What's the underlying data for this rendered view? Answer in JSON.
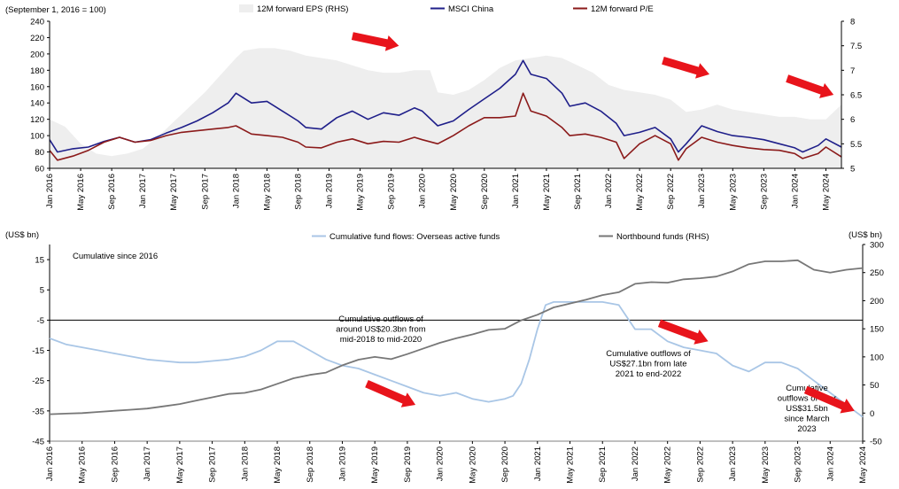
{
  "chart_data": [
    {
      "type": "line",
      "unit_label": "(September 1, 2016 = 100)",
      "xlim": [
        "2016-01",
        "2024-07"
      ],
      "ylim": [
        60,
        240
      ],
      "y_ticks": [
        60,
        80,
        100,
        120,
        140,
        160,
        180,
        200,
        220,
        240
      ],
      "y2lim": [
        5,
        8
      ],
      "y2_ticks": [
        "5",
        "5.5",
        "6",
        "6.5",
        "7",
        "7.5",
        "8"
      ],
      "x_ticks": [
        "Jan 2016",
        "May 2016",
        "Sep 2016",
        "Jan 2017",
        "May 2017",
        "Sep 2017",
        "Jan 2018",
        "May 2018",
        "Sep 2018",
        "Jan 2019",
        "May 2019",
        "Sep 2019",
        "Jan 2020",
        "May 2020",
        "Sep 2020",
        "Jan 2021",
        "May 2021",
        "Sep 2021",
        "Jan 2022",
        "May 2022",
        "Sep 2022",
        "Jan 2023",
        "May 2023",
        "Sep 2023",
        "Jan 2024",
        "May 2024"
      ],
      "legend": [
        "12M forward EPS (RHS)",
        "MSCI China",
        "12M forward P/E"
      ],
      "colors": {
        "eps": "#eeeeee",
        "msci": "#1f1f8a",
        "pe": "#8b1a1a",
        "arrow": "#e8141b"
      },
      "series": [
        {
          "name": "12M forward EPS (RHS)",
          "axis": "right",
          "style": "area",
          "x": [
            "2016-01",
            "2016-03",
            "2016-05",
            "2016-07",
            "2016-09",
            "2016-11",
            "2017-01",
            "2017-03",
            "2017-05",
            "2017-07",
            "2017-09",
            "2017-11",
            "2018-01",
            "2018-02",
            "2018-04",
            "2018-06",
            "2018-08",
            "2018-10",
            "2018-12",
            "2019-02",
            "2019-04",
            "2019-06",
            "2019-08",
            "2019-10",
            "2019-12",
            "2020-02",
            "2020-03",
            "2020-05",
            "2020-07",
            "2020-09",
            "2020-11",
            "2021-01",
            "2021-03",
            "2021-05",
            "2021-07",
            "2021-09",
            "2021-11",
            "2022-01",
            "2022-03",
            "2022-05",
            "2022-07",
            "2022-09",
            "2022-11",
            "2023-01",
            "2023-03",
            "2023-05",
            "2023-07",
            "2023-09",
            "2023-11",
            "2024-01",
            "2024-03",
            "2024-05",
            "2024-07"
          ],
          "values": [
            6.0,
            5.85,
            5.5,
            5.3,
            5.25,
            5.3,
            5.4,
            5.65,
            5.95,
            6.25,
            6.55,
            6.9,
            7.25,
            7.4,
            7.45,
            7.45,
            7.4,
            7.3,
            7.25,
            7.2,
            7.1,
            7.0,
            6.95,
            6.95,
            7.0,
            7.0,
            6.55,
            6.5,
            6.6,
            6.8,
            7.05,
            7.2,
            7.25,
            7.3,
            7.25,
            7.1,
            6.95,
            6.7,
            6.6,
            6.55,
            6.5,
            6.4,
            6.15,
            6.2,
            6.3,
            6.2,
            6.15,
            6.1,
            6.05,
            6.05,
            6.0,
            6.0,
            6.3
          ]
        },
        {
          "name": "MSCI China",
          "axis": "left",
          "x": [
            "2016-01",
            "2016-02",
            "2016-04",
            "2016-06",
            "2016-08",
            "2016-10",
            "2016-12",
            "2017-02",
            "2017-04",
            "2017-06",
            "2017-08",
            "2017-10",
            "2017-12",
            "2018-01",
            "2018-03",
            "2018-05",
            "2018-07",
            "2018-09",
            "2018-10",
            "2018-12",
            "2019-02",
            "2019-04",
            "2019-06",
            "2019-08",
            "2019-10",
            "2019-12",
            "2020-01",
            "2020-03",
            "2020-05",
            "2020-07",
            "2020-09",
            "2020-11",
            "2021-01",
            "2021-02",
            "2021-03",
            "2021-05",
            "2021-07",
            "2021-08",
            "2021-10",
            "2021-12",
            "2022-02",
            "2022-03",
            "2022-05",
            "2022-07",
            "2022-09",
            "2022-10",
            "2022-11",
            "2023-01",
            "2023-03",
            "2023-05",
            "2023-07",
            "2023-09",
            "2023-11",
            "2024-01",
            "2024-02",
            "2024-04",
            "2024-05",
            "2024-07"
          ],
          "values": [
            95,
            80,
            84,
            86,
            93,
            98,
            92,
            95,
            103,
            110,
            118,
            128,
            140,
            152,
            140,
            142,
            130,
            118,
            110,
            108,
            122,
            130,
            120,
            128,
            125,
            134,
            130,
            112,
            118,
            132,
            145,
            158,
            175,
            192,
            175,
            170,
            152,
            136,
            140,
            130,
            115,
            100,
            104,
            110,
            96,
            80,
            90,
            112,
            105,
            100,
            98,
            95,
            90,
            85,
            80,
            88,
            96,
            86
          ]
        },
        {
          "name": "12M forward P/E",
          "axis": "left",
          "x": [
            "2016-01",
            "2016-02",
            "2016-04",
            "2016-06",
            "2016-08",
            "2016-10",
            "2016-12",
            "2017-02",
            "2017-04",
            "2017-06",
            "2017-08",
            "2017-10",
            "2017-12",
            "2018-01",
            "2018-03",
            "2018-05",
            "2018-07",
            "2018-09",
            "2018-10",
            "2018-12",
            "2019-02",
            "2019-04",
            "2019-06",
            "2019-08",
            "2019-10",
            "2019-12",
            "2020-01",
            "2020-03",
            "2020-05",
            "2020-07",
            "2020-09",
            "2020-11",
            "2021-01",
            "2021-02",
            "2021-03",
            "2021-05",
            "2021-07",
            "2021-08",
            "2021-10",
            "2021-12",
            "2022-02",
            "2022-03",
            "2022-05",
            "2022-07",
            "2022-09",
            "2022-10",
            "2022-11",
            "2023-01",
            "2023-03",
            "2023-05",
            "2023-07",
            "2023-09",
            "2023-11",
            "2024-01",
            "2024-02",
            "2024-04",
            "2024-05",
            "2024-07"
          ],
          "values": [
            82,
            70,
            75,
            82,
            92,
            98,
            92,
            94,
            100,
            104,
            106,
            108,
            110,
            112,
            102,
            100,
            98,
            92,
            86,
            85,
            92,
            96,
            90,
            93,
            92,
            98,
            95,
            90,
            100,
            112,
            122,
            122,
            124,
            152,
            130,
            124,
            110,
            100,
            102,
            98,
            92,
            72,
            90,
            100,
            90,
            70,
            84,
            98,
            92,
            88,
            85,
            83,
            82,
            78,
            72,
            78,
            86,
            74
          ]
        }
      ],
      "arrows": [
        {
          "from": [
            "2019-04",
            222
          ],
          "to": [
            "2019-10",
            210
          ]
        },
        {
          "from": [
            "2022-08",
            192
          ],
          "to": [
            "2023-02",
            175
          ]
        },
        {
          "from": [
            "2023-12",
            170
          ],
          "to": [
            "2024-06",
            150
          ]
        }
      ]
    },
    {
      "type": "line",
      "ylabel": "(US$ bn)",
      "y2label": "(US$ bn)",
      "subtitle": "Cumulative since 2016",
      "xlim": [
        "2016-01",
        "2024-05"
      ],
      "ylim": [
        -45,
        20
      ],
      "y_ticks": [
        15,
        5,
        -5,
        -15,
        -25,
        -35,
        -45
      ],
      "y_tick_labels": [
        "15",
        "5",
        "-5",
        "-15",
        "-25",
        "-35",
        "-45"
      ],
      "y2lim": [
        -50,
        300
      ],
      "y2_ticks": [
        300,
        250,
        200,
        150,
        100,
        50,
        0,
        -50
      ],
      "x_ticks": [
        "Jan 2016",
        "May 2016",
        "Sep 2016",
        "Jan 2017",
        "May 2017",
        "Sep 2017",
        "Jan 2018",
        "May 2018",
        "Sep 2018",
        "Jan 2019",
        "May 2019",
        "Sep 2019",
        "Jan 2020",
        "May 2020",
        "Sep 2020",
        "Jan 2021",
        "May 2021",
        "Sep 2021",
        "Jan 2022",
        "May 2022",
        "Sep 2022",
        "Jan 2023",
        "May 2023",
        "Sep 2023",
        "Jan 2024",
        "May 2024"
      ],
      "legend": [
        "Cumulative fund flows: Overseas active funds",
        "Northbound funds (RHS)"
      ],
      "colors": {
        "active": "#a9c6e6",
        "northbound": "#777777",
        "arrow": "#e8141b"
      },
      "series": [
        {
          "name": "Cumulative fund flows: Overseas active funds",
          "axis": "left",
          "x": [
            "2016-01",
            "2016-03",
            "2016-05",
            "2016-07",
            "2016-09",
            "2016-11",
            "2017-01",
            "2017-03",
            "2017-05",
            "2017-07",
            "2017-09",
            "2017-11",
            "2018-01",
            "2018-03",
            "2018-05",
            "2018-07",
            "2018-09",
            "2018-11",
            "2019-01",
            "2019-03",
            "2019-05",
            "2019-07",
            "2019-09",
            "2019-11",
            "2020-01",
            "2020-03",
            "2020-05",
            "2020-07",
            "2020-09",
            "2020-10",
            "2020-11",
            "2020-12",
            "2021-01",
            "2021-02",
            "2021-03",
            "2021-05",
            "2021-07",
            "2021-09",
            "2021-11",
            "2022-01",
            "2022-03",
            "2022-05",
            "2022-07",
            "2022-09",
            "2022-11",
            "2023-01",
            "2023-03",
            "2023-05",
            "2023-07",
            "2023-09",
            "2023-11",
            "2024-01",
            "2024-03",
            "2024-05"
          ],
          "values": [
            -11,
            -13,
            -14,
            -15,
            -16,
            -17,
            -18,
            -18.5,
            -19,
            -19,
            -18.5,
            -18,
            -17,
            -15,
            -12,
            -12,
            -15,
            -18,
            -20,
            -21,
            -23,
            -25,
            -27,
            -29,
            -30,
            -29,
            -31,
            -32,
            -31,
            -30,
            -26,
            -18,
            -8,
            0,
            1,
            1,
            1,
            1,
            0,
            -8,
            -8,
            -12,
            -14,
            -15,
            -16,
            -20,
            -22,
            -19,
            -19,
            -21,
            -25,
            -29,
            -33,
            -37
          ]
        },
        {
          "name": "Northbound funds (RHS)",
          "axis": "right",
          "x": [
            "2016-01",
            "2016-03",
            "2016-05",
            "2016-07",
            "2016-09",
            "2016-11",
            "2017-01",
            "2017-03",
            "2017-05",
            "2017-07",
            "2017-09",
            "2017-11",
            "2018-01",
            "2018-03",
            "2018-05",
            "2018-07",
            "2018-09",
            "2018-11",
            "2019-01",
            "2019-03",
            "2019-05",
            "2019-07",
            "2019-09",
            "2019-11",
            "2020-01",
            "2020-03",
            "2020-05",
            "2020-07",
            "2020-09",
            "2020-11",
            "2021-01",
            "2021-03",
            "2021-05",
            "2021-07",
            "2021-09",
            "2021-11",
            "2022-01",
            "2022-03",
            "2022-05",
            "2022-07",
            "2022-09",
            "2022-11",
            "2023-01",
            "2023-03",
            "2023-05",
            "2023-07",
            "2023-09",
            "2023-11",
            "2024-01",
            "2024-03",
            "2024-05"
          ],
          "values": [
            -2,
            -1,
            0,
            2,
            4,
            6,
            8,
            12,
            16,
            22,
            28,
            34,
            36,
            42,
            52,
            62,
            68,
            72,
            85,
            95,
            100,
            96,
            105,
            115,
            125,
            133,
            140,
            148,
            150,
            165,
            175,
            188,
            195,
            202,
            210,
            215,
            230,
            233,
            232,
            238,
            240,
            243,
            252,
            265,
            270,
            270,
            272,
            255,
            250,
            255,
            258
          ]
        }
      ],
      "annotations": [
        {
          "lines": [
            "Cumulative outflows of",
            "around US$20.3bn from",
            "mid-2018 to mid-2020"
          ]
        },
        {
          "lines": [
            "Cumulative outflows of",
            "US$27.1bn from late",
            "2021 to end-2022"
          ]
        },
        {
          "lines": [
            "Cumulative",
            "outflows of over",
            "US$31.5bn",
            "since March",
            "2023"
          ]
        }
      ],
      "arrows": [
        {
          "from": [
            "2019-04",
            -26
          ],
          "to": [
            "2019-10",
            -33
          ]
        },
        {
          "from": [
            "2022-04",
            -6
          ],
          "to": [
            "2022-10",
            -12
          ]
        },
        {
          "from": [
            "2023-10",
            -28
          ],
          "to": [
            "2024-04",
            -35
          ]
        }
      ]
    }
  ]
}
